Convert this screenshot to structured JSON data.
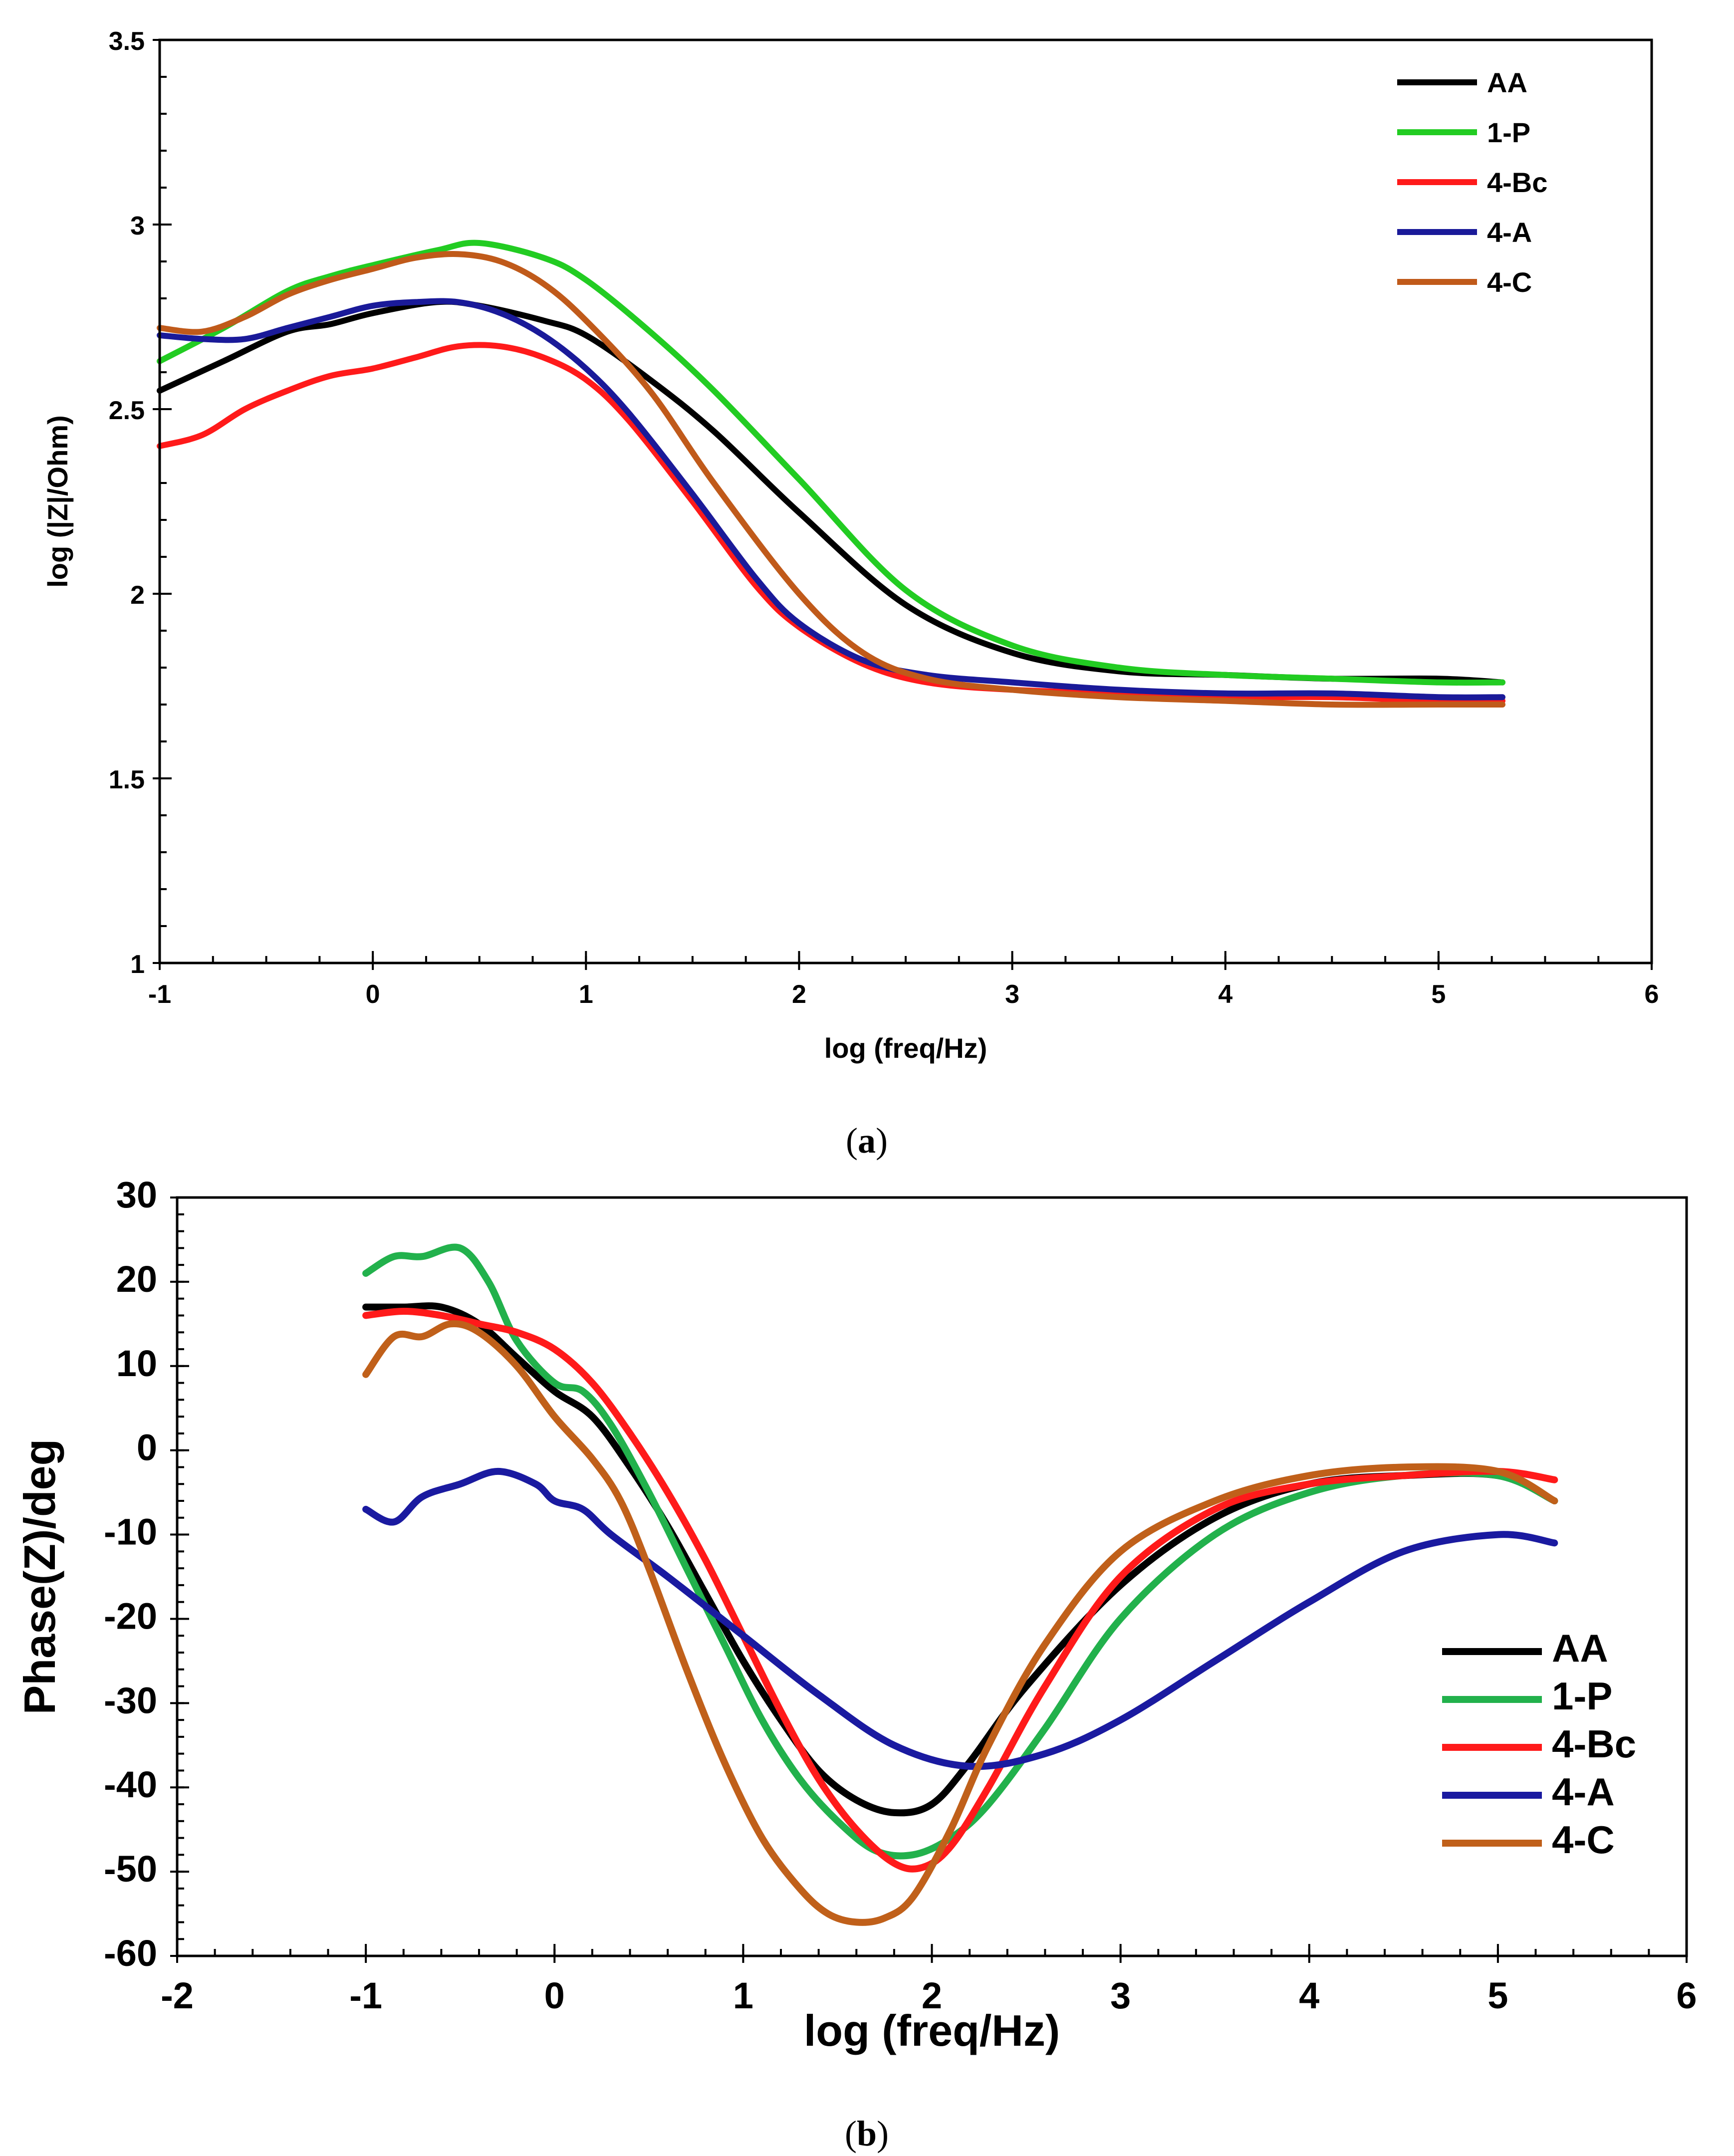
{
  "chart_data": [
    {
      "id": "a",
      "type": "line",
      "caption_letter": "a",
      "xlabel": "log (freq/Hz)",
      "ylabel": "log (|Z|/Ohm)",
      "xlim": [
        -1,
        6
      ],
      "ylim": [
        1,
        3.5
      ],
      "x_ticks": [
        -1,
        0,
        1,
        2,
        3,
        4,
        5,
        6
      ],
      "y_ticks": [
        1,
        1.5,
        2,
        2.5,
        3,
        3.5
      ],
      "x_tick_labels": [
        "-1",
        "0",
        "1",
        "2",
        "3",
        "4",
        "5",
        "6"
      ],
      "y_tick_labels": [
        "1",
        "1.5",
        "2",
        "2.5",
        "3",
        "3.5"
      ],
      "legend": "top-right",
      "series": [
        {
          "name": "AA",
          "color": "#000000",
          "x": [
            -1,
            -0.7,
            -0.4,
            -0.2,
            0,
            0.3,
            0.5,
            0.8,
            1.0,
            1.3,
            1.6,
            2.0,
            2.5,
            3.0,
            3.5,
            4.0,
            4.5,
            5.0,
            5.3
          ],
          "y": [
            2.55,
            2.63,
            2.71,
            2.73,
            2.76,
            2.79,
            2.78,
            2.74,
            2.7,
            2.58,
            2.44,
            2.22,
            1.97,
            1.84,
            1.79,
            1.78,
            1.77,
            1.77,
            1.76
          ]
        },
        {
          "name": "1-P",
          "color": "#22cc22",
          "x": [
            -1,
            -0.7,
            -0.4,
            -0.2,
            0,
            0.3,
            0.5,
            0.8,
            1.0,
            1.3,
            1.6,
            2.0,
            2.5,
            3.0,
            3.5,
            4.0,
            4.5,
            5.0,
            5.3
          ],
          "y": [
            2.63,
            2.72,
            2.82,
            2.86,
            2.89,
            2.93,
            2.95,
            2.91,
            2.85,
            2.71,
            2.55,
            2.31,
            2.01,
            1.86,
            1.8,
            1.78,
            1.77,
            1.76,
            1.76
          ]
        },
        {
          "name": "4-Bc",
          "color": "#ff1a1a",
          "x": [
            -1,
            -0.8,
            -0.6,
            -0.4,
            -0.2,
            0,
            0.2,
            0.4,
            0.6,
            0.8,
            1.0,
            1.2,
            1.5,
            1.8,
            2.0,
            2.3,
            2.6,
            3.0,
            3.5,
            4.0,
            4.5,
            5.0,
            5.3
          ],
          "y": [
            2.4,
            2.43,
            2.5,
            2.55,
            2.59,
            2.61,
            2.64,
            2.67,
            2.67,
            2.64,
            2.58,
            2.47,
            2.25,
            2.02,
            1.91,
            1.81,
            1.76,
            1.74,
            1.73,
            1.72,
            1.72,
            1.71,
            1.71
          ]
        },
        {
          "name": "4-A",
          "color": "#1a1a99",
          "x": [
            -1,
            -0.8,
            -0.6,
            -0.4,
            -0.2,
            0,
            0.2,
            0.4,
            0.6,
            0.8,
            1.0,
            1.2,
            1.5,
            1.8,
            2.0,
            2.3,
            2.6,
            3.0,
            3.5,
            4.0,
            4.5,
            5.0,
            5.3
          ],
          "y": [
            2.7,
            2.69,
            2.69,
            2.72,
            2.75,
            2.78,
            2.79,
            2.79,
            2.76,
            2.7,
            2.61,
            2.49,
            2.27,
            2.04,
            1.92,
            1.82,
            1.78,
            1.76,
            1.74,
            1.73,
            1.73,
            1.72,
            1.72
          ]
        },
        {
          "name": "4-C",
          "color": "#c05a1a",
          "x": [
            -1,
            -0.8,
            -0.6,
            -0.4,
            -0.2,
            0,
            0.2,
            0.4,
            0.6,
            0.8,
            1.0,
            1.3,
            1.6,
            2.0,
            2.3,
            2.6,
            3.0,
            3.5,
            4.0,
            4.5,
            5.0,
            5.3
          ],
          "y": [
            2.72,
            2.71,
            2.75,
            2.81,
            2.85,
            2.88,
            2.91,
            2.92,
            2.9,
            2.84,
            2.74,
            2.55,
            2.3,
            2.0,
            1.84,
            1.77,
            1.74,
            1.72,
            1.71,
            1.7,
            1.7,
            1.7
          ]
        }
      ]
    },
    {
      "id": "b",
      "type": "line",
      "caption_letter": "b",
      "xlabel": "log (freq/Hz)",
      "ylabel": "Phase(Z)/deg",
      "xlim": [
        -2,
        6
      ],
      "ylim": [
        -60,
        30
      ],
      "x_ticks": [
        -2,
        -1,
        0,
        1,
        2,
        3,
        4,
        5,
        6
      ],
      "y_ticks": [
        -60,
        -50,
        -40,
        -30,
        -20,
        -10,
        0,
        10,
        20,
        30
      ],
      "x_tick_labels": [
        "-2",
        "-1",
        "0",
        "1",
        "2",
        "3",
        "4",
        "5",
        "6"
      ],
      "y_tick_labels": [
        "-60",
        "-50",
        "-40",
        "-30",
        "-20",
        "-10",
        "0",
        "10",
        "20",
        "30"
      ],
      "legend": "bottom-right",
      "series": [
        {
          "name": "AA",
          "color": "#000000",
          "x": [
            -1,
            -0.8,
            -0.6,
            -0.4,
            -0.2,
            0,
            0.2,
            0.4,
            0.6,
            0.8,
            1.0,
            1.2,
            1.4,
            1.6,
            1.8,
            2.0,
            2.2,
            2.5,
            3.0,
            3.5,
            4.0,
            4.5,
            5.0,
            5.3
          ],
          "y": [
            17,
            17,
            17,
            15,
            11,
            7,
            4,
            -2,
            -9,
            -17,
            -25,
            -32,
            -38,
            -41.5,
            -43,
            -42,
            -37,
            -28,
            -16,
            -8,
            -4,
            -3,
            -3,
            -6
          ]
        },
        {
          "name": "1-P",
          "color": "#22b14c",
          "x": [
            -1,
            -0.85,
            -0.7,
            -0.5,
            -0.35,
            -0.2,
            0,
            0.15,
            0.3,
            0.5,
            0.7,
            0.9,
            1.1,
            1.3,
            1.5,
            1.7,
            1.9,
            2.1,
            2.3,
            2.6,
            3.0,
            3.5,
            4.0,
            4.5,
            5.0,
            5.3
          ],
          "y": [
            21,
            23,
            23,
            24,
            20,
            13,
            8,
            7,
            3,
            -5,
            -14,
            -23,
            -32,
            -39,
            -44,
            -47.5,
            -48,
            -46,
            -42,
            -33,
            -20,
            -10,
            -5,
            -3,
            -3,
            -6
          ]
        },
        {
          "name": "4-Bc",
          "color": "#ff1a1a",
          "x": [
            -1,
            -0.8,
            -0.6,
            -0.4,
            -0.2,
            0,
            0.2,
            0.4,
            0.6,
            0.8,
            1.0,
            1.2,
            1.4,
            1.6,
            1.8,
            1.95,
            2.1,
            2.3,
            2.6,
            3.0,
            3.5,
            4.0,
            4.5,
            5.0,
            5.3
          ],
          "y": [
            16,
            16.5,
            16,
            15,
            14,
            12,
            8,
            2,
            -5,
            -13,
            -22,
            -31,
            -39,
            -45,
            -49,
            -49.5,
            -47,
            -40,
            -28,
            -15,
            -7,
            -4,
            -3,
            -2.5,
            -3.5
          ]
        },
        {
          "name": "4-A",
          "color": "#1a1aa0",
          "x": [
            -1,
            -0.85,
            -0.7,
            -0.5,
            -0.3,
            -0.1,
            0,
            0.15,
            0.3,
            0.6,
            1.0,
            1.4,
            1.8,
            2.2,
            2.6,
            3.0,
            3.5,
            4.0,
            4.5,
            5.0,
            5.3
          ],
          "y": [
            -7,
            -8.5,
            -5.5,
            -4,
            -2.5,
            -4,
            -6,
            -7,
            -10,
            -15,
            -22,
            -29,
            -35,
            -37.5,
            -36,
            -32,
            -25,
            -18,
            -12,
            -10,
            -11
          ]
        },
        {
          "name": "4-C",
          "color": "#c0601a",
          "x": [
            -1,
            -0.85,
            -0.7,
            -0.55,
            -0.4,
            -0.2,
            0,
            0.2,
            0.35,
            0.5,
            0.7,
            0.9,
            1.1,
            1.3,
            1.45,
            1.6,
            1.75,
            1.9,
            2.1,
            2.3,
            2.6,
            3.0,
            3.5,
            4.0,
            4.5,
            5.0,
            5.3
          ],
          "y": [
            9,
            13.5,
            13.5,
            15,
            14,
            10,
            4,
            -1,
            -6,
            -14,
            -26,
            -37,
            -46,
            -52,
            -55,
            -56,
            -55.5,
            -53,
            -45,
            -35,
            -23,
            -12,
            -6,
            -3,
            -2,
            -2.5,
            -6
          ]
        }
      ]
    }
  ]
}
